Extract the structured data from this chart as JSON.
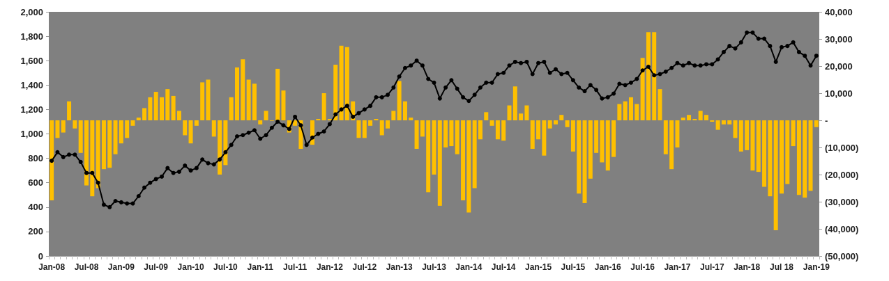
{
  "chart_data": {
    "type": "bar",
    "categories": [
      "Jan-08",
      null,
      null,
      null,
      null,
      null,
      "Jul-08",
      null,
      null,
      null,
      null,
      null,
      "Jan-09",
      null,
      null,
      null,
      null,
      null,
      "Jul-09",
      null,
      null,
      null,
      null,
      null,
      "Jan-10",
      null,
      null,
      null,
      null,
      null,
      "Jul-10",
      null,
      null,
      null,
      null,
      null,
      "Jan-11",
      null,
      null,
      null,
      null,
      null,
      "Jul-11",
      null,
      null,
      null,
      null,
      null,
      "Jan-12",
      null,
      null,
      null,
      null,
      null,
      "Jul-12",
      null,
      null,
      null,
      null,
      null,
      "Jan-13",
      null,
      null,
      null,
      null,
      null,
      "Jul-13",
      null,
      null,
      null,
      null,
      null,
      "Jan-14",
      null,
      null,
      null,
      null,
      null,
      "Jul-14",
      null,
      null,
      null,
      null,
      null,
      "Jan-15",
      null,
      null,
      null,
      null,
      null,
      "Jul-15",
      null,
      null,
      null,
      null,
      null,
      "Jan-16",
      null,
      null,
      null,
      null,
      null,
      "Jul-16",
      null,
      null,
      null,
      null,
      null,
      "Jan-17",
      null,
      null,
      null,
      null,
      null,
      "Jul-17",
      null,
      null,
      null,
      null,
      null,
      "Jan-18",
      null,
      null,
      null,
      null,
      null,
      "Jul 18",
      null,
      null,
      null,
      null,
      null,
      "Jan-19"
    ],
    "series": [
      {
        "axis": "y2",
        "color": "#ffc000",
        "values": [
          -29500,
          -6500,
          -4500,
          7000,
          -3000,
          -12000,
          -24000,
          -28000,
          -25000,
          -18000,
          -17500,
          -12500,
          -8500,
          -6500,
          -2000,
          1000,
          4500,
          8500,
          10500,
          8500,
          11500,
          9000,
          3500,
          -5500,
          -8500,
          -2000,
          14000,
          15000,
          -6000,
          -20000,
          -16500,
          8500,
          19500,
          22500,
          15000,
          13500,
          -1500,
          3500,
          -200,
          19000,
          11000,
          -4500,
          -2000,
          -10500,
          0,
          -9000,
          500,
          10000,
          500,
          20500,
          27500,
          27000,
          7000,
          -6500,
          -6500,
          -2000,
          500,
          -5500,
          -3000,
          3500,
          14500,
          7000,
          1000,
          -10500,
          -6000,
          -26500,
          -20000,
          -31500,
          -10000,
          -9500,
          -12500,
          -29500,
          -34000,
          -25000,
          -7000,
          3000,
          -2000,
          -7000,
          -7500,
          5500,
          12500,
          2500,
          5500,
          -10500,
          -7000,
          -13000,
          -3000,
          -1500,
          2000,
          -2500,
          -11500,
          -27000,
          -30500,
          -21500,
          -12000,
          -15500,
          -18500,
          -13500,
          6000,
          7000,
          8500,
          6000,
          23000,
          32500,
          32500,
          11500,
          -12500,
          -18000,
          -10000,
          1000,
          2000,
          500,
          3500,
          2000,
          -500,
          -3500,
          -1500,
          -1500,
          -6500,
          -11500,
          -11000,
          -18500,
          -19000,
          -24500,
          -28000,
          -40500,
          -27000,
          -23500,
          -9500,
          -27500,
          -28500,
          -26000,
          -2500
        ]
      },
      {
        "type": "line",
        "color": "#000000",
        "values": [
          780,
          850,
          810,
          830,
          830,
          770,
          680,
          680,
          600,
          420,
          400,
          450,
          440,
          430,
          430,
          490,
          560,
          600,
          630,
          650,
          720,
          680,
          690,
          740,
          700,
          720,
          790,
          760,
          750,
          790,
          850,
          910,
          980,
          990,
          1010,
          1030,
          960,
          990,
          1050,
          1100,
          1070,
          1040,
          1140,
          1070,
          910,
          970,
          1000,
          1020,
          1080,
          1160,
          1200,
          1230,
          1140,
          1170,
          1200,
          1230,
          1300,
          1300,
          1320,
          1380,
          1470,
          1540,
          1560,
          1600,
          1560,
          1450,
          1420,
          1290,
          1380,
          1440,
          1370,
          1300,
          1270,
          1320,
          1380,
          1420,
          1420,
          1490,
          1500,
          1560,
          1590,
          1580,
          1590,
          1490,
          1580,
          1590,
          1500,
          1530,
          1490,
          1500,
          1440,
          1380,
          1350,
          1400,
          1360,
          1290,
          1300,
          1330,
          1410,
          1400,
          1420,
          1450,
          1520,
          1550,
          1480,
          1490,
          1510,
          1540,
          1580,
          1560,
          1580,
          1560,
          1560,
          1570,
          1570,
          1610,
          1670,
          1720,
          1700,
          1750,
          1830,
          1830,
          1780,
          1780,
          1720,
          1590,
          1710,
          1720,
          1750,
          1670,
          1640,
          1560,
          1640
        ]
      }
    ],
    "marker": "circle",
    "ylim": [
      0,
      2000
    ],
    "yticks": [
      0,
      200,
      400,
      600,
      800,
      {
        "value": 1000,
        "label": "1,000"
      },
      {
        "value": 1200,
        "label": "1,200"
      },
      {
        "value": 1400,
        "label": "1,400"
      },
      {
        "value": 1600,
        "label": "1,600"
      },
      {
        "value": 1800,
        "label": "1,800"
      },
      {
        "value": 2000,
        "label": "2,000"
      }
    ],
    "y2lim": [
      -50000,
      40000
    ],
    "y2ticks": [
      {
        "value": -50000,
        "label": "(50,000)"
      },
      {
        "value": -40000,
        "label": "(40,000)"
      },
      {
        "value": -30000,
        "label": "(30,000)"
      },
      {
        "value": -20000,
        "label": "(20,000)"
      },
      {
        "value": -10000,
        "label": "(10,000)"
      },
      {
        "value": 0,
        "label": "-"
      },
      {
        "value": 10000,
        "label": "10,000"
      },
      {
        "value": 20000,
        "label": "20,000"
      },
      {
        "value": 30000,
        "label": "30,000"
      },
      {
        "value": 40000,
        "label": "40,000"
      }
    ]
  }
}
